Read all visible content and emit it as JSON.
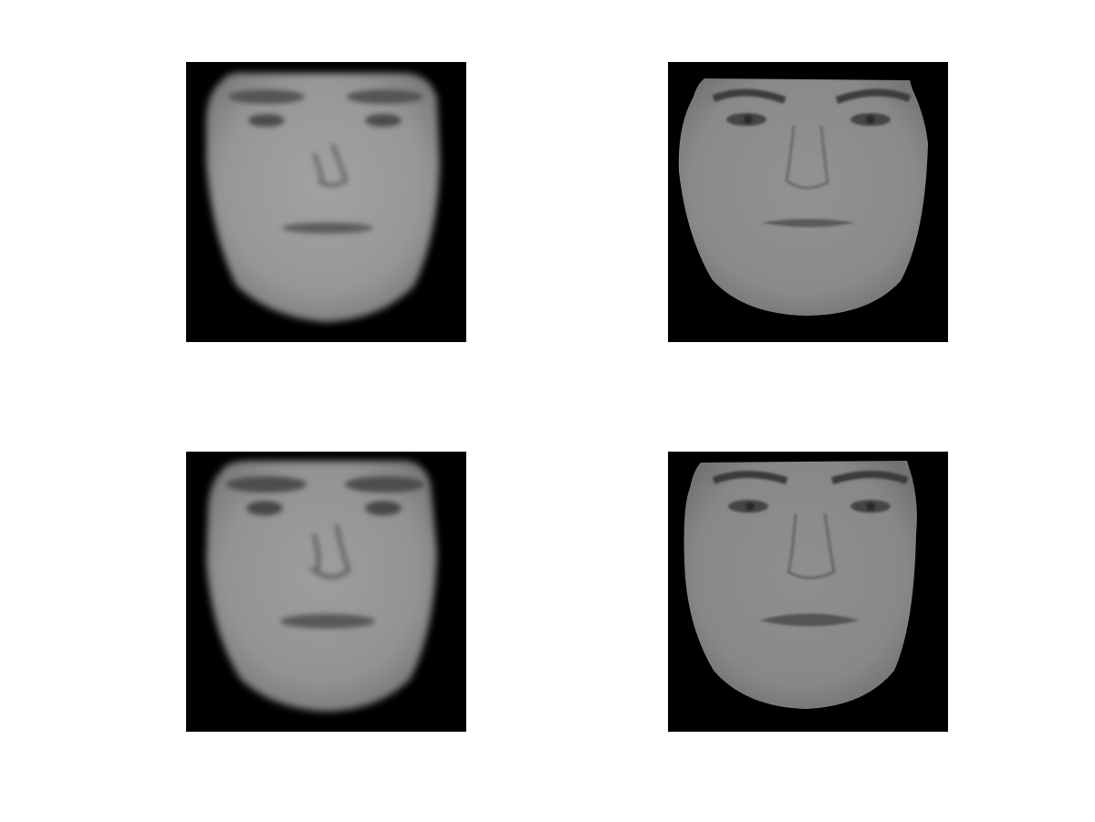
{
  "figure": {
    "background": "#ffffff",
    "panel_background": "#000000",
    "panels": [
      {
        "id": "top-left",
        "content": "face-image",
        "render_style": "blurred",
        "skin_tone": "#9a9a9a"
      },
      {
        "id": "top-right",
        "content": "face-image",
        "render_style": "sharp",
        "skin_tone": "#8c8c8c"
      },
      {
        "id": "bottom-left",
        "content": "face-image",
        "render_style": "blurred",
        "skin_tone": "#969696"
      },
      {
        "id": "bottom-right",
        "content": "face-image",
        "render_style": "sharp",
        "skin_tone": "#8a8a8a"
      }
    ]
  }
}
